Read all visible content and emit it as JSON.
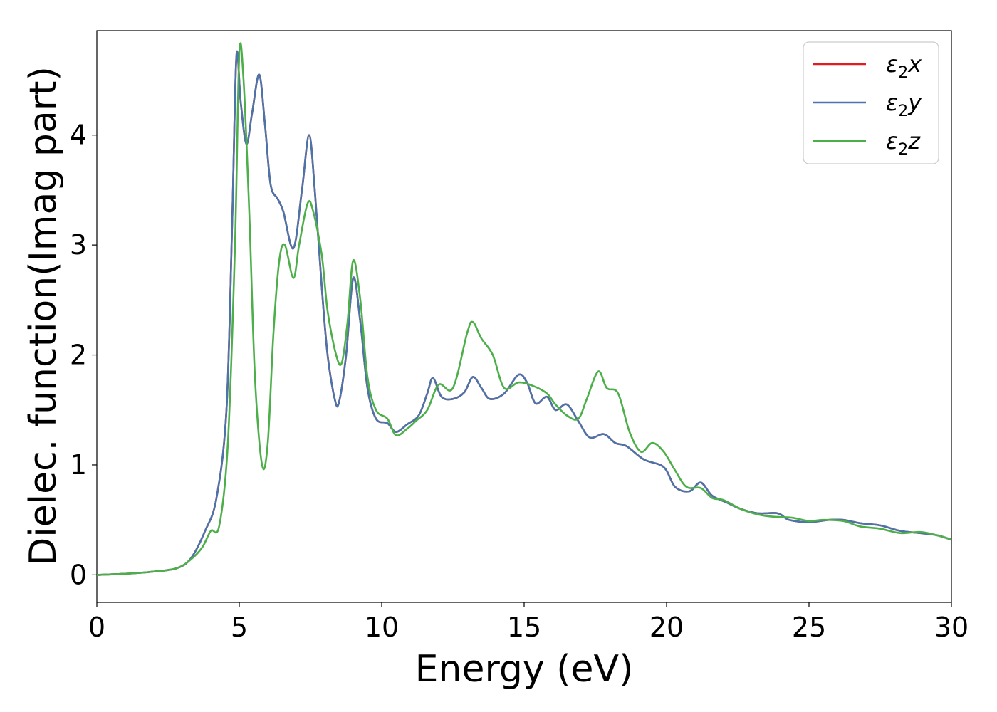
{
  "chart_data": {
    "type": "line",
    "xlabel": "Energy (eV)",
    "ylabel": "Dielec. function(Imag part)",
    "xlim": [
      0,
      30
    ],
    "ylim": [
      -0.25,
      4.95
    ],
    "xticks": [
      "0",
      "5",
      "10",
      "15",
      "20",
      "25",
      "30"
    ],
    "yticks": [
      "0",
      "1",
      "2",
      "3",
      "4"
    ],
    "legend_position": "top-right",
    "grid": false,
    "series": [
      {
        "name": "ε₂x",
        "label_main": "ε",
        "label_sub": "2",
        "label_var": "x",
        "color": "#e41a1c",
        "points": [
          [
            0,
            0.0
          ],
          [
            1,
            0.01
          ],
          [
            2,
            0.03
          ],
          [
            2.8,
            0.06
          ],
          [
            3.3,
            0.15
          ],
          [
            3.8,
            0.4
          ],
          [
            4.2,
            0.7
          ],
          [
            4.55,
            1.5
          ],
          [
            4.75,
            3.2
          ],
          [
            4.9,
            4.72
          ],
          [
            5.05,
            4.3
          ],
          [
            5.25,
            3.92
          ],
          [
            5.45,
            4.2
          ],
          [
            5.7,
            4.55
          ],
          [
            5.9,
            4.1
          ],
          [
            6.1,
            3.55
          ],
          [
            6.35,
            3.42
          ],
          [
            6.55,
            3.3
          ],
          [
            6.9,
            2.97
          ],
          [
            7.2,
            3.5
          ],
          [
            7.45,
            4.0
          ],
          [
            7.65,
            3.5
          ],
          [
            7.9,
            2.6
          ],
          [
            8.1,
            2.0
          ],
          [
            8.35,
            1.6
          ],
          [
            8.5,
            1.57
          ],
          [
            8.75,
            2.0
          ],
          [
            9.0,
            2.7
          ],
          [
            9.25,
            2.3
          ],
          [
            9.5,
            1.7
          ],
          [
            9.8,
            1.42
          ],
          [
            10.2,
            1.38
          ],
          [
            10.5,
            1.3
          ],
          [
            10.9,
            1.37
          ],
          [
            11.3,
            1.45
          ],
          [
            11.6,
            1.65
          ],
          [
            11.8,
            1.79
          ],
          [
            12.1,
            1.62
          ],
          [
            12.5,
            1.6
          ],
          [
            12.9,
            1.66
          ],
          [
            13.2,
            1.8
          ],
          [
            13.5,
            1.7
          ],
          [
            13.8,
            1.6
          ],
          [
            14.3,
            1.65
          ],
          [
            14.8,
            1.82
          ],
          [
            15.1,
            1.75
          ],
          [
            15.4,
            1.56
          ],
          [
            15.8,
            1.62
          ],
          [
            16.1,
            1.5
          ],
          [
            16.5,
            1.55
          ],
          [
            16.9,
            1.4
          ],
          [
            17.3,
            1.25
          ],
          [
            17.8,
            1.28
          ],
          [
            18.2,
            1.2
          ],
          [
            18.6,
            1.17
          ],
          [
            19.2,
            1.05
          ],
          [
            19.9,
            0.98
          ],
          [
            20.3,
            0.8
          ],
          [
            20.8,
            0.76
          ],
          [
            21.2,
            0.84
          ],
          [
            21.6,
            0.72
          ],
          [
            22.1,
            0.66
          ],
          [
            22.6,
            0.6
          ],
          [
            23.2,
            0.56
          ],
          [
            23.9,
            0.56
          ],
          [
            24.3,
            0.5
          ],
          [
            25.0,
            0.48
          ],
          [
            25.7,
            0.5
          ],
          [
            26.2,
            0.5
          ],
          [
            26.8,
            0.47
          ],
          [
            27.5,
            0.45
          ],
          [
            28.2,
            0.4
          ],
          [
            28.9,
            0.38
          ],
          [
            29.5,
            0.36
          ],
          [
            30.0,
            0.32
          ]
        ]
      },
      {
        "name": "ε₂y",
        "label_main": "ε",
        "label_sub": "2",
        "label_var": "y",
        "color": "#4a74aa",
        "points": [
          [
            0,
            0.0
          ],
          [
            1,
            0.01
          ],
          [
            2,
            0.03
          ],
          [
            2.8,
            0.06
          ],
          [
            3.3,
            0.15
          ],
          [
            3.8,
            0.4
          ],
          [
            4.2,
            0.7
          ],
          [
            4.55,
            1.5
          ],
          [
            4.75,
            3.2
          ],
          [
            4.9,
            4.72
          ],
          [
            5.05,
            4.3
          ],
          [
            5.25,
            3.92
          ],
          [
            5.45,
            4.2
          ],
          [
            5.7,
            4.55
          ],
          [
            5.9,
            4.1
          ],
          [
            6.1,
            3.55
          ],
          [
            6.35,
            3.42
          ],
          [
            6.55,
            3.3
          ],
          [
            6.9,
            2.97
          ],
          [
            7.2,
            3.5
          ],
          [
            7.45,
            4.0
          ],
          [
            7.65,
            3.5
          ],
          [
            7.9,
            2.6
          ],
          [
            8.1,
            2.0
          ],
          [
            8.35,
            1.6
          ],
          [
            8.5,
            1.57
          ],
          [
            8.75,
            2.0
          ],
          [
            9.0,
            2.7
          ],
          [
            9.25,
            2.3
          ],
          [
            9.5,
            1.7
          ],
          [
            9.8,
            1.42
          ],
          [
            10.2,
            1.38
          ],
          [
            10.5,
            1.3
          ],
          [
            10.9,
            1.37
          ],
          [
            11.3,
            1.45
          ],
          [
            11.6,
            1.65
          ],
          [
            11.8,
            1.79
          ],
          [
            12.1,
            1.62
          ],
          [
            12.5,
            1.6
          ],
          [
            12.9,
            1.66
          ],
          [
            13.2,
            1.8
          ],
          [
            13.5,
            1.7
          ],
          [
            13.8,
            1.6
          ],
          [
            14.3,
            1.65
          ],
          [
            14.8,
            1.82
          ],
          [
            15.1,
            1.75
          ],
          [
            15.4,
            1.56
          ],
          [
            15.8,
            1.62
          ],
          [
            16.1,
            1.5
          ],
          [
            16.5,
            1.55
          ],
          [
            16.9,
            1.4
          ],
          [
            17.3,
            1.25
          ],
          [
            17.8,
            1.28
          ],
          [
            18.2,
            1.2
          ],
          [
            18.6,
            1.17
          ],
          [
            19.2,
            1.05
          ],
          [
            19.9,
            0.98
          ],
          [
            20.3,
            0.8
          ],
          [
            20.8,
            0.76
          ],
          [
            21.2,
            0.84
          ],
          [
            21.6,
            0.72
          ],
          [
            22.1,
            0.66
          ],
          [
            22.6,
            0.6
          ],
          [
            23.2,
            0.56
          ],
          [
            23.9,
            0.56
          ],
          [
            24.3,
            0.5
          ],
          [
            25.0,
            0.48
          ],
          [
            25.7,
            0.5
          ],
          [
            26.2,
            0.5
          ],
          [
            26.8,
            0.47
          ],
          [
            27.5,
            0.45
          ],
          [
            28.2,
            0.4
          ],
          [
            28.9,
            0.38
          ],
          [
            29.5,
            0.36
          ],
          [
            30.0,
            0.32
          ]
        ]
      },
      {
        "name": "ε₂z",
        "label_main": "ε",
        "label_sub": "2",
        "label_var": "z",
        "color": "#4daf4a",
        "points": [
          [
            0,
            0.0
          ],
          [
            1,
            0.01
          ],
          [
            2,
            0.03
          ],
          [
            2.8,
            0.06
          ],
          [
            3.3,
            0.14
          ],
          [
            3.7,
            0.25
          ],
          [
            4.0,
            0.4
          ],
          [
            4.3,
            0.45
          ],
          [
            4.6,
            1.2
          ],
          [
            4.85,
            3.0
          ],
          [
            5.0,
            4.73
          ],
          [
            5.15,
            4.5
          ],
          [
            5.35,
            3.3
          ],
          [
            5.55,
            1.8
          ],
          [
            5.8,
            1.0
          ],
          [
            6.0,
            1.2
          ],
          [
            6.2,
            2.2
          ],
          [
            6.4,
            2.85
          ],
          [
            6.6,
            3.0
          ],
          [
            6.9,
            2.7
          ],
          [
            7.1,
            3.0
          ],
          [
            7.4,
            3.38
          ],
          [
            7.6,
            3.3
          ],
          [
            7.9,
            2.9
          ],
          [
            8.1,
            2.4
          ],
          [
            8.4,
            2.0
          ],
          [
            8.6,
            1.93
          ],
          [
            8.8,
            2.3
          ],
          [
            9.0,
            2.86
          ],
          [
            9.25,
            2.5
          ],
          [
            9.5,
            1.8
          ],
          [
            9.8,
            1.5
          ],
          [
            10.2,
            1.42
          ],
          [
            10.5,
            1.27
          ],
          [
            10.9,
            1.33
          ],
          [
            11.2,
            1.4
          ],
          [
            11.6,
            1.5
          ],
          [
            12.0,
            1.73
          ],
          [
            12.5,
            1.7
          ],
          [
            13.0,
            2.2
          ],
          [
            13.2,
            2.3
          ],
          [
            13.5,
            2.15
          ],
          [
            13.9,
            2.0
          ],
          [
            14.3,
            1.7
          ],
          [
            14.8,
            1.75
          ],
          [
            15.3,
            1.72
          ],
          [
            15.8,
            1.65
          ],
          [
            16.1,
            1.55
          ],
          [
            16.5,
            1.45
          ],
          [
            16.9,
            1.42
          ],
          [
            17.2,
            1.6
          ],
          [
            17.6,
            1.85
          ],
          [
            17.9,
            1.7
          ],
          [
            18.3,
            1.65
          ],
          [
            18.7,
            1.3
          ],
          [
            19.1,
            1.12
          ],
          [
            19.5,
            1.2
          ],
          [
            19.9,
            1.12
          ],
          [
            20.3,
            0.95
          ],
          [
            20.7,
            0.8
          ],
          [
            21.2,
            0.79
          ],
          [
            21.6,
            0.7
          ],
          [
            22.0,
            0.68
          ],
          [
            22.6,
            0.6
          ],
          [
            23.2,
            0.55
          ],
          [
            23.7,
            0.53
          ],
          [
            24.4,
            0.52
          ],
          [
            25.0,
            0.49
          ],
          [
            25.5,
            0.5
          ],
          [
            26.2,
            0.49
          ],
          [
            26.8,
            0.44
          ],
          [
            27.5,
            0.42
          ],
          [
            28.2,
            0.38
          ],
          [
            28.9,
            0.39
          ],
          [
            29.5,
            0.36
          ],
          [
            30.0,
            0.32
          ]
        ]
      }
    ]
  }
}
